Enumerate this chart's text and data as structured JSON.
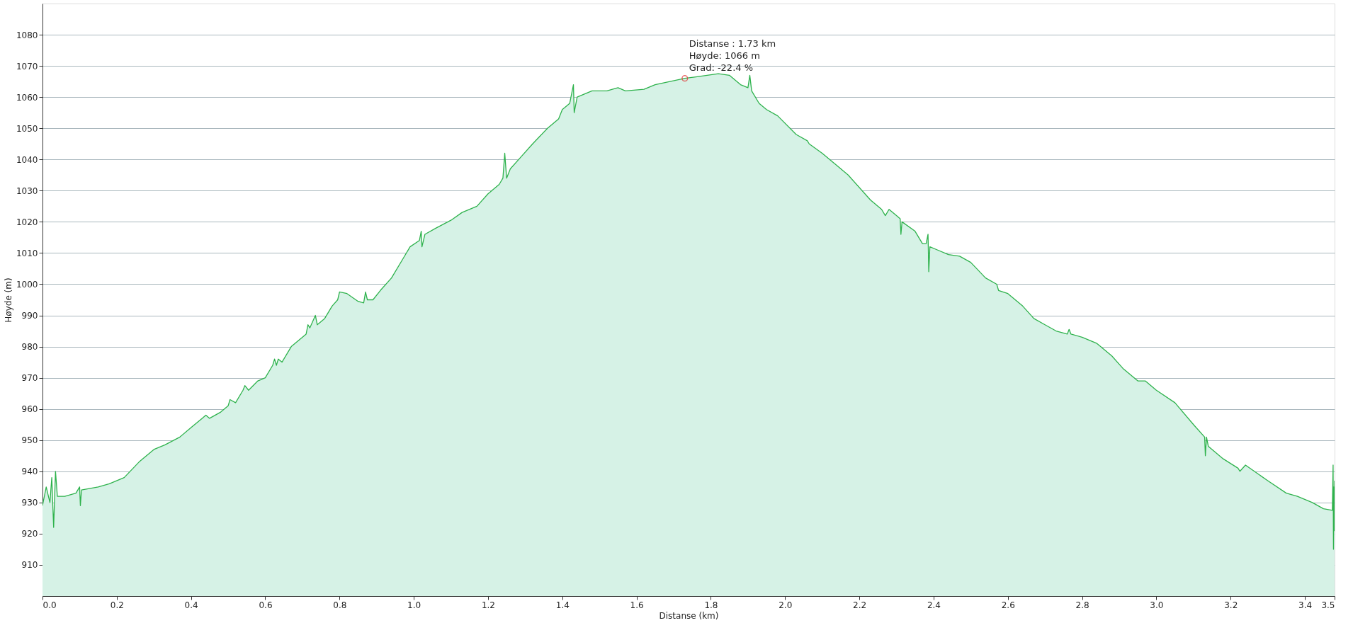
{
  "chart_data": {
    "type": "area",
    "ylabel": "Høyde (m)",
    "xlabel": "Distanse (km)",
    "xlim": [
      0,
      3.48
    ],
    "ylim": [
      900,
      1090
    ],
    "xticks": [
      {
        "value": 0,
        "label": "0.0"
      },
      0.2,
      0.4,
      0.6,
      0.8,
      {
        "value": 1,
        "label": "1.0"
      },
      1.2,
      1.4,
      1.6,
      1.8,
      {
        "value": 2,
        "label": "2.0"
      },
      2.2,
      2.4,
      2.6,
      2.8,
      {
        "value": 3,
        "label": "3.0"
      },
      3.2,
      3.4,
      {
        "value": 3.48,
        "label": "3.5"
      }
    ],
    "yticks": [
      910,
      920,
      930,
      940,
      950,
      960,
      970,
      980,
      990,
      1000,
      1010,
      1020,
      1030,
      1040,
      1050,
      1060,
      1070,
      1080
    ],
    "grid": "y",
    "marker": "none",
    "line_style": "solid",
    "annotations": [
      {
        "text": "Distanse : 1.73 km\nHøyde: 1066 m\nGrad: -22.4 %",
        "x": 1.73,
        "y": 1066
      }
    ],
    "series": [
      {
        "color": "#2eb24c",
        "x": [
          0.0,
          0.01,
          0.02,
          0.025,
          0.03,
          0.035,
          0.04,
          0.06,
          0.09,
          0.1,
          0.102,
          0.105,
          0.15,
          0.18,
          0.22,
          0.26,
          0.3,
          0.33,
          0.37,
          0.4,
          0.43,
          0.44,
          0.45,
          0.48,
          0.5,
          0.505,
          0.52,
          0.54,
          0.545,
          0.555,
          0.58,
          0.6,
          0.62,
          0.625,
          0.63,
          0.635,
          0.645,
          0.67,
          0.69,
          0.71,
          0.715,
          0.72,
          0.735,
          0.74,
          0.76,
          0.78,
          0.795,
          0.8,
          0.82,
          0.85,
          0.865,
          0.87,
          0.875,
          0.89,
          0.91,
          0.94,
          0.97,
          0.99,
          1.015,
          1.02,
          1.022,
          1.03,
          1.06,
          1.1,
          1.13,
          1.17,
          1.2,
          1.23,
          1.24,
          1.245,
          1.25,
          1.26,
          1.29,
          1.32,
          1.36,
          1.39,
          1.4,
          1.42,
          1.43,
          1.432,
          1.44,
          1.48,
          1.52,
          1.55,
          1.57,
          1.62,
          1.65,
          1.73,
          1.76,
          1.82,
          1.85,
          1.88,
          1.9,
          1.905,
          1.91,
          1.93,
          1.95,
          1.98,
          2.03,
          2.06,
          2.065,
          2.1,
          2.14,
          2.17,
          2.23,
          2.26,
          2.27,
          2.28,
          2.3,
          2.31,
          2.312,
          2.315,
          2.35,
          2.37,
          2.38,
          2.385,
          2.387,
          2.39,
          2.41,
          2.44,
          2.47,
          2.5,
          2.54,
          2.57,
          2.575,
          2.6,
          2.64,
          2.67,
          2.7,
          2.73,
          2.76,
          2.765,
          2.77,
          2.8,
          2.84,
          2.88,
          2.91,
          2.95,
          2.97,
          3.0,
          3.05,
          3.1,
          3.13,
          3.132,
          3.135,
          3.14,
          3.18,
          3.22,
          3.225,
          3.24,
          3.3,
          3.35,
          3.38,
          3.42,
          3.45,
          3.474,
          3.476,
          3.477,
          3.478,
          3.479,
          3.48
        ],
        "values": [
          929,
          935,
          930,
          938,
          922,
          940,
          932,
          932,
          933,
          935,
          929,
          934,
          935,
          936,
          938,
          943,
          947,
          948.5,
          951,
          954,
          957,
          958,
          957,
          959,
          961,
          963,
          962,
          966,
          967.5,
          966,
          969,
          970,
          974,
          976,
          974,
          976,
          975,
          980,
          982,
          984,
          987,
          986,
          990,
          987,
          989,
          993,
          995,
          997.5,
          997,
          994.5,
          994,
          997.5,
          995,
          995,
          998,
          1002,
          1008,
          1012,
          1014,
          1017,
          1012,
          1016,
          1018,
          1020.5,
          1023,
          1025,
          1029,
          1032,
          1034,
          1042,
          1034,
          1037,
          1041,
          1045,
          1050,
          1053,
          1056,
          1058,
          1064,
          1055,
          1060,
          1062,
          1062,
          1063,
          1062,
          1062.5,
          1064,
          1066,
          1066.5,
          1067.5,
          1067,
          1064,
          1063,
          1067,
          1062,
          1058,
          1056,
          1054,
          1048,
          1046,
          1045,
          1042,
          1038,
          1035,
          1027,
          1024,
          1022,
          1024,
          1022,
          1021,
          1016,
          1020,
          1017,
          1013,
          1013,
          1016,
          1004,
          1012,
          1011,
          1009.5,
          1009,
          1007,
          1002,
          1000,
          998,
          997,
          993,
          989,
          987,
          985,
          984,
          985.5,
          984,
          983,
          981,
          977,
          973,
          969,
          969,
          966,
          962,
          955,
          951,
          945,
          951,
          948,
          944,
          941,
          940,
          942,
          937,
          933,
          932,
          930,
          928,
          927.5,
          942,
          915,
          935,
          921,
          937
        ]
      }
    ]
  }
}
